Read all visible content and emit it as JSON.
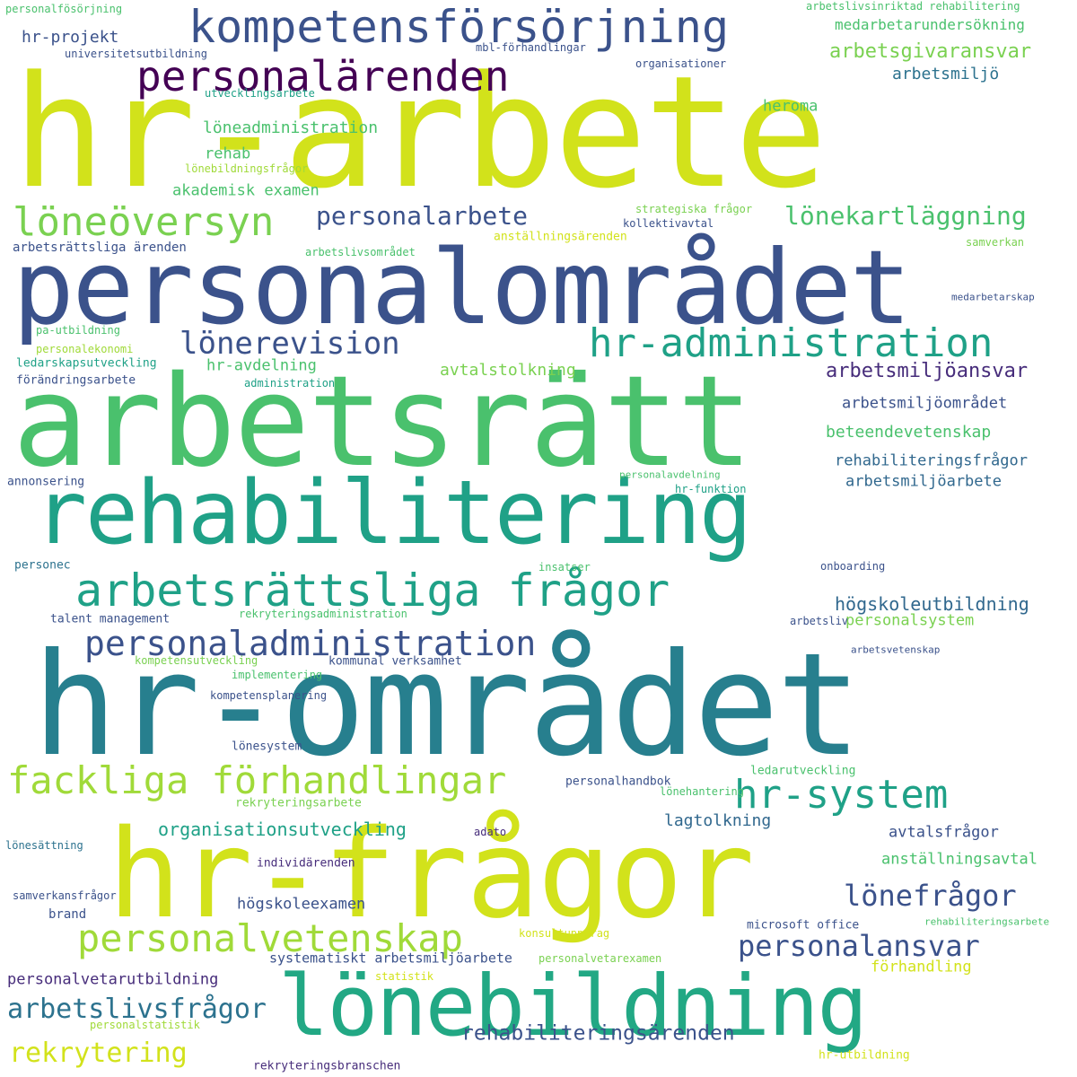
{
  "palette": {
    "yellow": "#d2e21b",
    "lime": "#a0da39",
    "lightgreen": "#7ad151",
    "green": "#4ac16d",
    "teal": "#1fa187",
    "teal2": "#22a884",
    "blueteal": "#277f8e",
    "steel": "#2c728e",
    "blue": "#31688e",
    "indigo": "#3b528b",
    "violet": "#472d7b",
    "dark": "#440154"
  },
  "words": [
    {
      "text": "hr-arbete",
      "color": "yellow"
    },
    {
      "text": "personalområdet",
      "color": "indigo"
    },
    {
      "text": "arbetsrätt",
      "color": "green"
    },
    {
      "text": "rehabilitering",
      "color": "teal"
    },
    {
      "text": "hr-området",
      "color": "blueteal"
    },
    {
      "text": "hr-frågor",
      "color": "yellow"
    },
    {
      "text": "lönebildning",
      "color": "teal2"
    },
    {
      "text": "kompetensförsörjning",
      "color": "indigo"
    },
    {
      "text": "personalärenden",
      "color": "dark"
    },
    {
      "text": "arbetsrättsliga frågor",
      "color": "teal"
    },
    {
      "text": "löneöversyn",
      "color": "lightgreen"
    },
    {
      "text": "hr-administration",
      "color": "teal"
    },
    {
      "text": "personaladministration",
      "color": "indigo"
    },
    {
      "text": "fackliga förhandlingar",
      "color": "lime"
    },
    {
      "text": "hr-system",
      "color": "teal"
    },
    {
      "text": "personalvetenskap",
      "color": "lime"
    },
    {
      "text": "personalarbete",
      "color": "indigo"
    },
    {
      "text": "lönerevision",
      "color": "indigo"
    },
    {
      "text": "lönekartläggning",
      "color": "green"
    },
    {
      "text": "lönefrågor",
      "color": "indigo"
    },
    {
      "text": "personalansvar",
      "color": "indigo"
    },
    {
      "text": "arbetslivsfrågor",
      "color": "steel"
    },
    {
      "text": "rekrytering",
      "color": "yellow"
    },
    {
      "text": "rehabiliteringsärenden",
      "color": "indigo"
    },
    {
      "text": "arbetsgivaransvar",
      "color": "lightgreen"
    },
    {
      "text": "medarbetarundersökning",
      "color": "green"
    },
    {
      "text": "hr-projekt",
      "color": "indigo"
    },
    {
      "text": "arbetsmiljö",
      "color": "steel"
    },
    {
      "text": "heroma",
      "color": "green"
    },
    {
      "text": "löneadministration",
      "color": "green"
    },
    {
      "text": "rehab",
      "color": "green"
    },
    {
      "text": "akademisk examen",
      "color": "green"
    },
    {
      "text": "arbetsmiljöansvar",
      "color": "violet"
    },
    {
      "text": "arbetsmiljöområdet",
      "color": "indigo"
    },
    {
      "text": "beteendevetenskap",
      "color": "green"
    },
    {
      "text": "rehabiliteringsfrågor",
      "color": "blue"
    },
    {
      "text": "arbetsmiljöarbete",
      "color": "blue"
    },
    {
      "text": "hr-avdelning",
      "color": "green"
    },
    {
      "text": "avtalstolkning",
      "color": "lightgreen"
    },
    {
      "text": "högskoleutbildning",
      "color": "blue"
    },
    {
      "text": "personalsystem",
      "color": "lightgreen"
    },
    {
      "text": "organisationsutveckling",
      "color": "teal"
    },
    {
      "text": "lagtolkning",
      "color": "blue"
    },
    {
      "text": "avtalsfrågor",
      "color": "indigo"
    },
    {
      "text": "anställningsavtal",
      "color": "green"
    },
    {
      "text": "högskoleexamen",
      "color": "indigo"
    },
    {
      "text": "personalvetarutbildning",
      "color": "violet"
    },
    {
      "text": "förhandling",
      "color": "yellow"
    },
    {
      "text": "systematiskt arbetsmiljöarbete",
      "color": "indigo"
    },
    {
      "text": "personalfösörjning",
      "color": "green"
    },
    {
      "text": "universitetsutbildning",
      "color": "indigo"
    },
    {
      "text": "mbl-förhandlingar",
      "color": "indigo"
    },
    {
      "text": "arbetslivsinriktad rehabilitering",
      "color": "green"
    },
    {
      "text": "organisationer",
      "color": "indigo"
    },
    {
      "text": "utvecklingsarbete",
      "color": "teal"
    },
    {
      "text": "lönebildningsfrågor",
      "color": "lime"
    },
    {
      "text": "strategiska frågor",
      "color": "lightgreen"
    },
    {
      "text": "kollektivavtal",
      "color": "indigo"
    },
    {
      "text": "anställningsärenden",
      "color": "yellow"
    },
    {
      "text": "samverkan",
      "color": "lightgreen"
    },
    {
      "text": "arbetsrättsliga ärenden",
      "color": "indigo"
    },
    {
      "text": "arbetslivsområdet",
      "color": "green"
    },
    {
      "text": "medarbetarskap",
      "color": "indigo"
    },
    {
      "text": "pa-utbildning",
      "color": "green"
    },
    {
      "text": "personalekonomi",
      "color": "lime"
    },
    {
      "text": "ledarskapsutveckling",
      "color": "teal"
    },
    {
      "text": "förändringsarbete",
      "color": "indigo"
    },
    {
      "text": "administration",
      "color": "teal"
    },
    {
      "text": "annonsering",
      "color": "indigo"
    },
    {
      "text": "personalavdelning",
      "color": "green"
    },
    {
      "text": "hr-funktion",
      "color": "teal"
    },
    {
      "text": "personec",
      "color": "steel"
    },
    {
      "text": "insatser",
      "color": "green"
    },
    {
      "text": "onboarding",
      "color": "indigo"
    },
    {
      "text": "talent management",
      "color": "indigo"
    },
    {
      "text": "rekryteringsadministration",
      "color": "green"
    },
    {
      "text": "arbetsliv",
      "color": "indigo"
    },
    {
      "text": "kompetensutveckling",
      "color": "lightgreen"
    },
    {
      "text": "kommunal verksamhet",
      "color": "indigo"
    },
    {
      "text": "arbetsvetenskap",
      "color": "indigo"
    },
    {
      "text": "implementering",
      "color": "green"
    },
    {
      "text": "kompetensplanering",
      "color": "indigo"
    },
    {
      "text": "lönesystem",
      "color": "indigo"
    },
    {
      "text": "personalhandbok",
      "color": "indigo"
    },
    {
      "text": "ledarutveckling",
      "color": "green"
    },
    {
      "text": "lönehantering",
      "color": "green"
    },
    {
      "text": "rekryteringsarbete",
      "color": "lightgreen"
    },
    {
      "text": "lönesättning",
      "color": "steel"
    },
    {
      "text": "adato",
      "color": "violet"
    },
    {
      "text": "individärenden",
      "color": "violet"
    },
    {
      "text": "samverkansfrågor",
      "color": "indigo"
    },
    {
      "text": "brand",
      "color": "indigo"
    },
    {
      "text": "konsultuppdrag",
      "color": "yellow"
    },
    {
      "text": "microsoft office",
      "color": "indigo"
    },
    {
      "text": "rehabiliteringsarbete",
      "color": "green"
    },
    {
      "text": "personalvetarexamen",
      "color": "lightgreen"
    },
    {
      "text": "statistik",
      "color": "yellow"
    },
    {
      "text": "personalstatistik",
      "color": "lime"
    },
    {
      "text": "hr-utbildning",
      "color": "yellow"
    },
    {
      "text": "rekryteringsbranschen",
      "color": "violet"
    }
  ]
}
